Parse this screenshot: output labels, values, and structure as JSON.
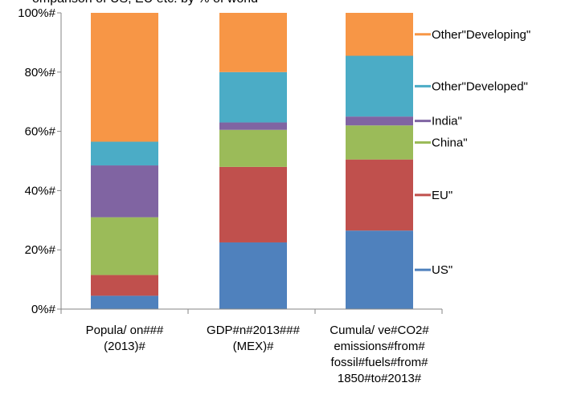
{
  "chart_data": {
    "type": "bar",
    "stacked": true,
    "percent_stacked": true,
    "title": "",
    "xlabel": "",
    "ylabel": "",
    "ylim": [
      0,
      100
    ],
    "y_ticks": [
      "0%#",
      "20%#",
      "40%#",
      "60%#",
      "80%#",
      "100%#"
    ],
    "categories": [
      [
        "Popula/ on###",
        "(2013)#"
      ],
      [
        "GDP#n#2013###",
        "(MEX)#"
      ],
      [
        "Cumula/ ve#CO2#",
        "emissions#from#",
        "fossil#fuels#from#",
        "1850#to#2013#"
      ]
    ],
    "series": [
      {
        "name": "US\"",
        "color": "#4f81bd",
        "values": [
          4.5,
          22.5,
          26.5
        ]
      },
      {
        "name": "EU\"",
        "color": "#c0504d",
        "values": [
          7.0,
          25.5,
          24.0
        ]
      },
      {
        "name": "China\"",
        "color": "#9bbb59",
        "values": [
          19.5,
          12.5,
          11.5
        ]
      },
      {
        "name": "India\"",
        "color": "#8064a2",
        "values": [
          17.5,
          2.5,
          3.0
        ]
      },
      {
        "name": "Other\"Developed\"",
        "color": "#4bacc6",
        "values": [
          8.0,
          17.0,
          20.5
        ]
      },
      {
        "name": "Other\"Developing\"",
        "color": "#f79646",
        "values": [
          43.5,
          20.0,
          14.5
        ]
      }
    ],
    "grid": false,
    "legend": "right, labels at segment positions of last bar"
  },
  "cut_title": "omparison of US, EU etc. by % of world"
}
